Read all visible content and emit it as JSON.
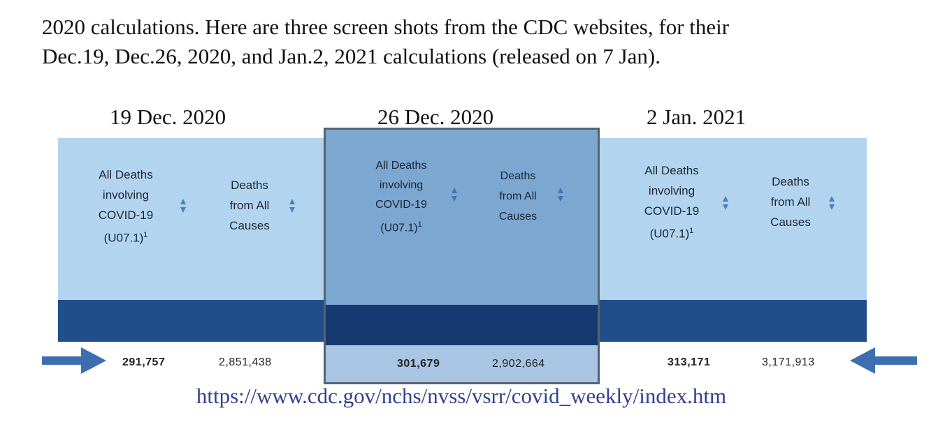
{
  "intro_text": {
    "line1": "2020 calculations. Here are three screen shots from the CDC websites, for their",
    "line2": "Dec.19, Dec.26, 2020, and Jan.2, 2021 calculations (released on 7 Jan)."
  },
  "snapshots": [
    {
      "date": "19 Dec. 2020",
      "covid_header": [
        "All Deaths",
        "involving",
        "COVID-19",
        "(U07.1)"
      ],
      "footnote": "1",
      "all_causes_header": [
        "Deaths",
        "from All",
        "Causes"
      ],
      "covid_deaths": "291,757",
      "all_deaths": "2,851,438"
    },
    {
      "date": "26 Dec. 2020",
      "covid_header": [
        "All Deaths",
        "involving",
        "COVID-19",
        "(U07.1)"
      ],
      "footnote": "1",
      "all_causes_header": [
        "Deaths",
        "from All",
        "Causes"
      ],
      "covid_deaths": "301,679",
      "all_deaths": "2,902,664"
    },
    {
      "date": "2 Jan. 2021",
      "covid_header": [
        "All Deaths",
        "involving",
        "COVID-19",
        "(U07.1)"
      ],
      "footnote": "1",
      "all_causes_header": [
        "Deaths",
        "from All",
        "Causes"
      ],
      "covid_deaths": "313,171",
      "all_deaths": "3,171,913"
    }
  ],
  "url": "https://www.cdc.gov/nchs/nvss/vsrr/covid_weekly/index.htm",
  "colors": {
    "light_band": "#b3d4ee",
    "dark_band": "#1f4e8a",
    "highlight": "#7ba7d1",
    "arrow": "#3d6fb0",
    "url": "#34408f"
  }
}
